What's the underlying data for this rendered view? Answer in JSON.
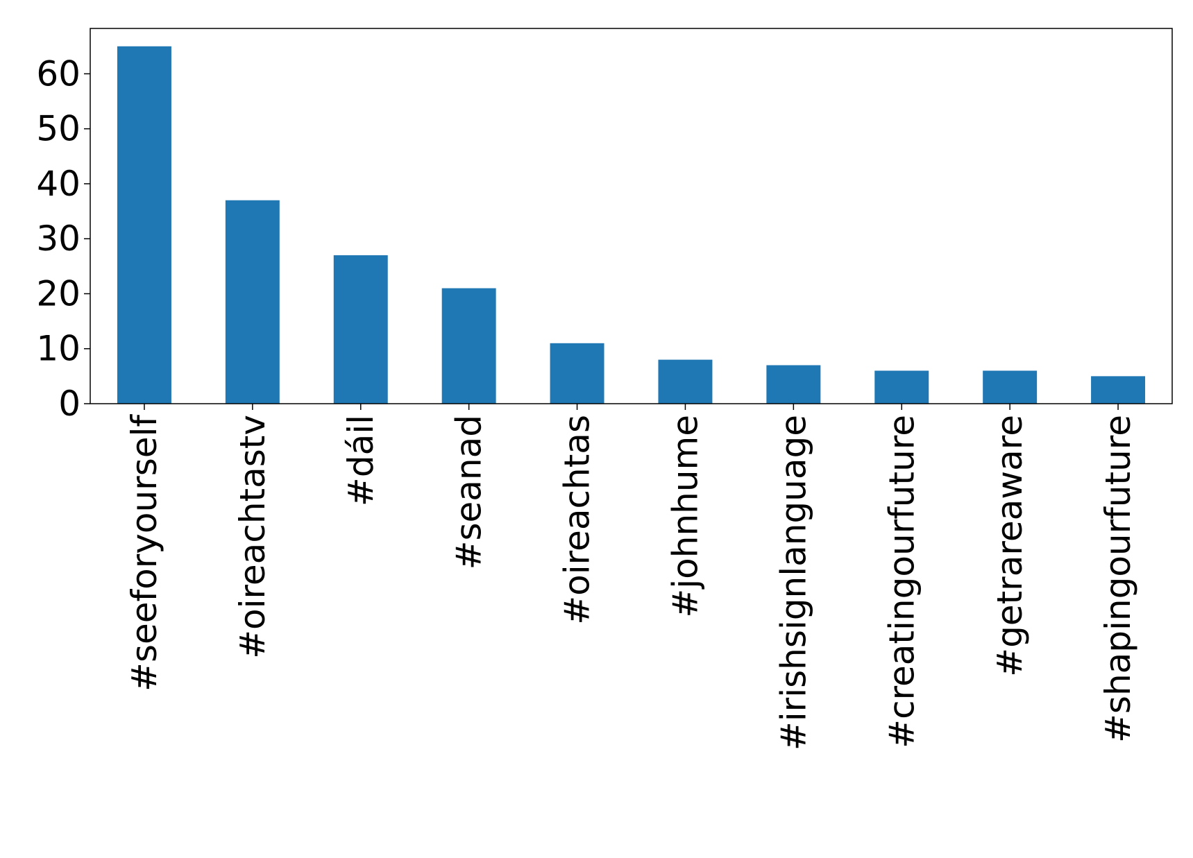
{
  "chart_data": {
    "type": "bar",
    "title": "",
    "xlabel": "",
    "ylabel": "",
    "categories": [
      "#seeforyourself",
      "#oireachtastv",
      "#dáil",
      "#seanad",
      "#oireachtas",
      "#johnhume",
      "#irishsignlanguage",
      "#creatingourfuture",
      "#getrareaware",
      "#shapingourfuture"
    ],
    "values": [
      65,
      37,
      27,
      21,
      11,
      8,
      7,
      6,
      6,
      5
    ],
    "ylim": [
      0,
      68.25
    ],
    "yticks": [
      0,
      10,
      20,
      30,
      40,
      50,
      60
    ],
    "grid": false,
    "legend": "none",
    "bar_color": "#1f77b4"
  }
}
